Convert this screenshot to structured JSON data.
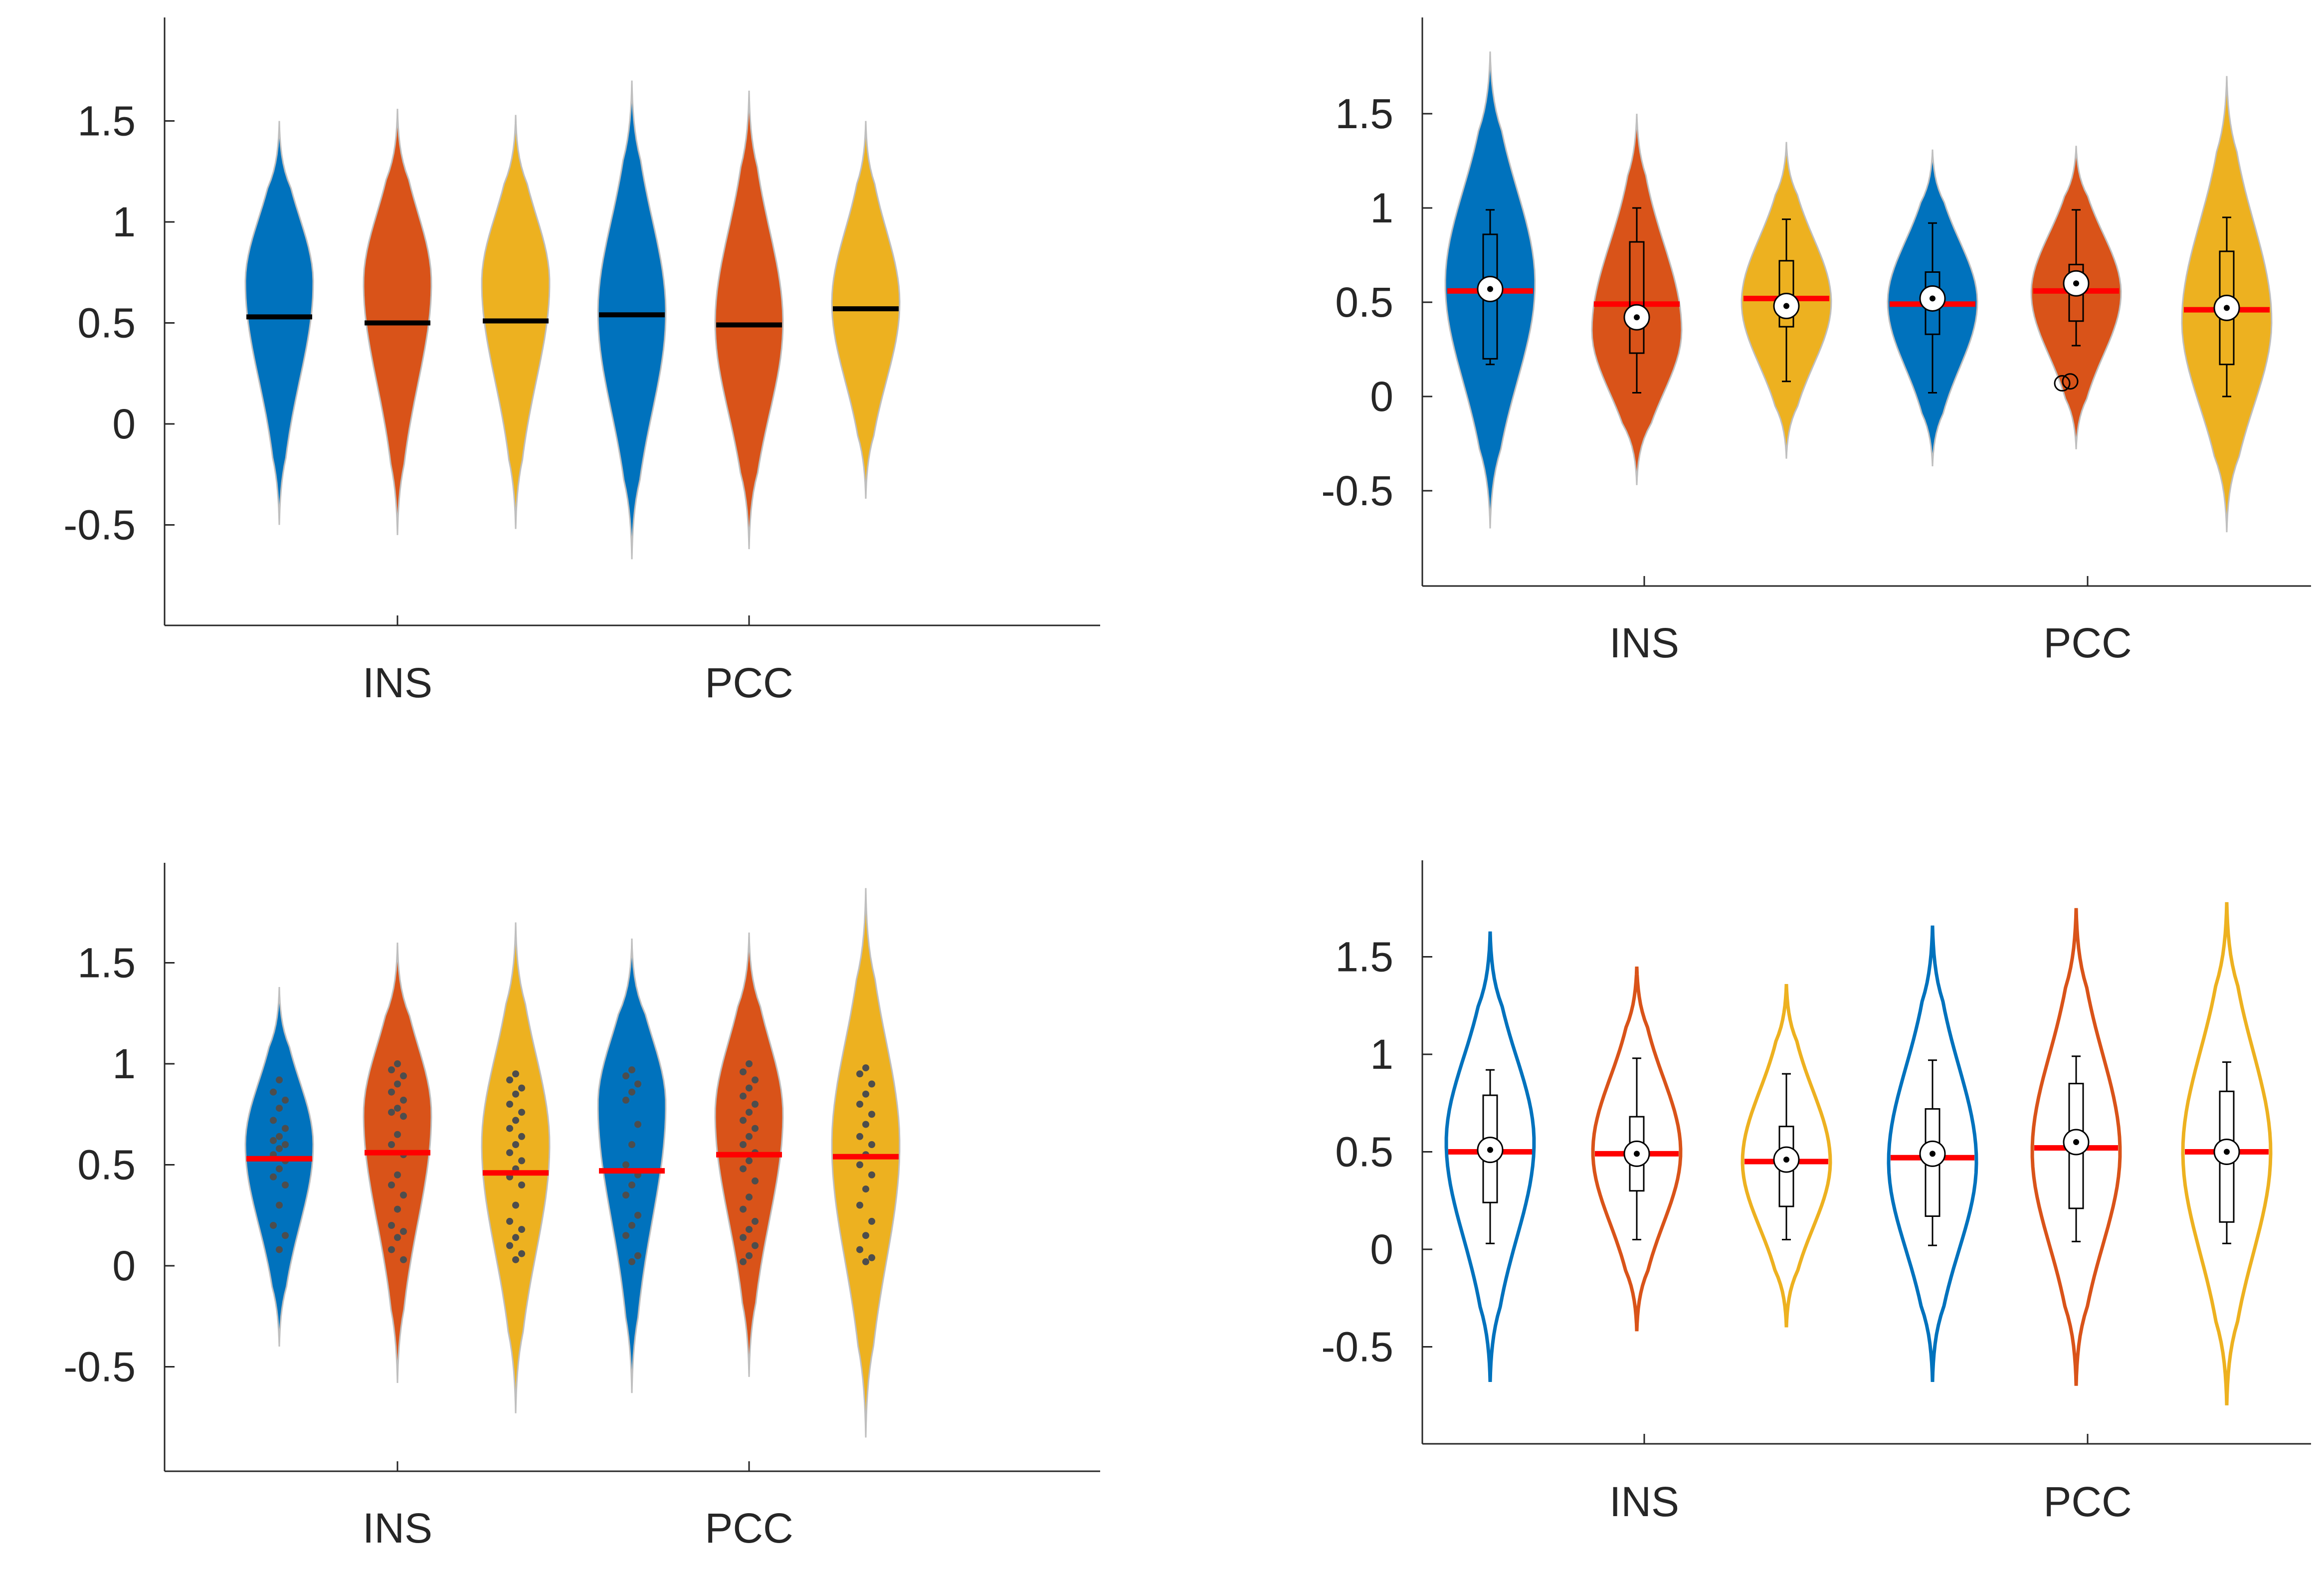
{
  "colors": {
    "blue": "#0072BD",
    "orange": "#D95319",
    "yellow": "#EDB120",
    "median_red": "#FF0000",
    "median_black": "#000000",
    "points": "#4D4D4D",
    "axis": "#262626"
  },
  "chart_data": [
    {
      "type": "violin",
      "panel": "top-left",
      "style": "filled violins, black mean line",
      "categories": [
        "INS",
        "PCC"
      ],
      "ylim": [
        -0.98,
        1.98
      ],
      "yticks": [
        -0.5,
        0,
        0.5,
        1,
        1.5
      ],
      "ytick_labels": [
        "-0.5",
        "0",
        "0.5",
        "1",
        "1.5"
      ],
      "grid": false,
      "violins": [
        {
          "color": "blue",
          "min": -0.5,
          "max": 1.5,
          "mode": 0.7,
          "center_line": 0.53
        },
        {
          "color": "orange",
          "min": -0.55,
          "max": 1.56,
          "mode": 0.7,
          "center_line": 0.5
        },
        {
          "color": "yellow",
          "min": -0.52,
          "max": 1.53,
          "mode": 0.7,
          "center_line": 0.51
        },
        {
          "color": "blue",
          "min": -0.67,
          "max": 1.7,
          "mode": 0.55,
          "center_line": 0.54
        },
        {
          "color": "orange",
          "min": -0.62,
          "max": 1.65,
          "mode": 0.5,
          "center_line": 0.49
        },
        {
          "color": "yellow",
          "min": -0.37,
          "max": 1.5,
          "mode": 0.6,
          "center_line": 0.57
        }
      ]
    },
    {
      "type": "violin",
      "panel": "top-right",
      "style": "filled violins, box plot, red mean line",
      "categories": [
        "INS",
        "PCC"
      ],
      "ylim": [
        -0.98,
        1.98
      ],
      "yticks": [
        -0.5,
        0,
        0.5,
        1,
        1.5
      ],
      "ytick_labels": [
        "-0.5",
        "0",
        "0.5",
        "1",
        "1.5"
      ],
      "grid": false,
      "violins": [
        {
          "color": "blue",
          "min": -0.7,
          "max": 1.83,
          "mode": 0.6,
          "center_line": 0.56,
          "median": 0.57,
          "q1": 0.2,
          "q3": 0.86,
          "whisker_low": 0.17,
          "whisker_high": 0.99
        },
        {
          "color": "orange",
          "min": -0.47,
          "max": 1.5,
          "mode": 0.35,
          "center_line": 0.49,
          "median": 0.42,
          "q1": 0.23,
          "q3": 0.82,
          "whisker_low": 0.02,
          "whisker_high": 1.0
        },
        {
          "color": "yellow",
          "min": -0.33,
          "max": 1.35,
          "mode": 0.5,
          "center_line": 0.52,
          "median": 0.48,
          "q1": 0.37,
          "q3": 0.72,
          "whisker_low": 0.08,
          "whisker_high": 0.94
        },
        {
          "color": "blue",
          "min": -0.37,
          "max": 1.31,
          "mode": 0.5,
          "center_line": 0.49,
          "median": 0.52,
          "q1": 0.33,
          "q3": 0.66,
          "whisker_low": 0.02,
          "whisker_high": 0.92
        },
        {
          "color": "orange",
          "min": -0.28,
          "max": 1.33,
          "mode": 0.55,
          "center_line": 0.56,
          "median": 0.6,
          "q1": 0.4,
          "q3": 0.7,
          "whisker_low": 0.27,
          "whisker_high": 0.99,
          "outliers": [
            0.07,
            0.08
          ]
        },
        {
          "color": "yellow",
          "min": -0.72,
          "max": 1.7,
          "mode": 0.4,
          "center_line": 0.46,
          "median": 0.47,
          "q1": 0.17,
          "q3": 0.77,
          "whisker_low": 0.0,
          "whisker_high": 0.95
        }
      ]
    },
    {
      "type": "violin",
      "panel": "bottom-left",
      "style": "filled violins, data points, red mean line",
      "categories": [
        "INS",
        "PCC"
      ],
      "ylim": [
        -0.98,
        1.98
      ],
      "yticks": [
        -0.5,
        0,
        0.5,
        1,
        1.5
      ],
      "ytick_labels": [
        "-0.5",
        "0",
        "0.5",
        "1",
        "1.5"
      ],
      "grid": false,
      "violins": [
        {
          "color": "blue",
          "min": -0.4,
          "max": 1.38,
          "mode": 0.6,
          "center_line": 0.53,
          "points": [
            0.92,
            0.86,
            0.82,
            0.78,
            0.72,
            0.68,
            0.64,
            0.62,
            0.6,
            0.58,
            0.55,
            0.52,
            0.48,
            0.44,
            0.4,
            0.3,
            0.2,
            0.15,
            0.08
          ]
        },
        {
          "color": "orange",
          "min": -0.58,
          "max": 1.6,
          "mode": 0.75,
          "center_line": 0.56,
          "points": [
            1.0,
            0.97,
            0.94,
            0.9,
            0.86,
            0.82,
            0.78,
            0.76,
            0.74,
            0.65,
            0.6,
            0.55,
            0.45,
            0.4,
            0.35,
            0.28,
            0.2,
            0.17,
            0.14,
            0.08,
            0.03
          ]
        },
        {
          "color": "yellow",
          "min": -0.73,
          "max": 1.7,
          "mode": 0.6,
          "center_line": 0.46,
          "points": [
            0.95,
            0.92,
            0.88,
            0.85,
            0.8,
            0.76,
            0.72,
            0.68,
            0.64,
            0.6,
            0.56,
            0.52,
            0.48,
            0.44,
            0.4,
            0.3,
            0.22,
            0.18,
            0.14,
            0.1,
            0.06,
            0.03
          ]
        },
        {
          "color": "blue",
          "min": -0.63,
          "max": 1.62,
          "mode": 0.8,
          "center_line": 0.47,
          "points": [
            0.97,
            0.94,
            0.9,
            0.86,
            0.82,
            0.7,
            0.6,
            0.5,
            0.45,
            0.4,
            0.35,
            0.25,
            0.2,
            0.15,
            0.05,
            0.02
          ]
        },
        {
          "color": "orange",
          "min": -0.55,
          "max": 1.65,
          "mode": 0.75,
          "center_line": 0.55,
          "points": [
            1.0,
            0.96,
            0.92,
            0.88,
            0.84,
            0.8,
            0.76,
            0.72,
            0.68,
            0.64,
            0.6,
            0.56,
            0.52,
            0.48,
            0.42,
            0.34,
            0.28,
            0.22,
            0.18,
            0.14,
            0.1,
            0.05,
            0.02
          ]
        },
        {
          "color": "yellow",
          "min": -0.85,
          "max": 1.87,
          "mode": 0.6,
          "center_line": 0.54,
          "points": [
            0.98,
            0.95,
            0.9,
            0.85,
            0.8,
            0.75,
            0.7,
            0.64,
            0.6,
            0.55,
            0.5,
            0.45,
            0.38,
            0.3,
            0.22,
            0.15,
            0.08,
            0.04,
            0.02
          ]
        }
      ]
    },
    {
      "type": "violin",
      "panel": "bottom-right",
      "style": "outline violins, box plot, red mean line",
      "categories": [
        "INS",
        "PCC"
      ],
      "ylim": [
        -0.98,
        1.98
      ],
      "yticks": [
        -0.5,
        0,
        0.5,
        1,
        1.5
      ],
      "ytick_labels": [
        "-0.5",
        "0",
        "0.5",
        "1",
        "1.5"
      ],
      "grid": false,
      "violins": [
        {
          "color": "blue",
          "min": -0.68,
          "max": 1.63,
          "mode": 0.55,
          "center_line": 0.5,
          "median": 0.51,
          "q1": 0.24,
          "q3": 0.79,
          "whisker_low": 0.03,
          "whisker_high": 0.92
        },
        {
          "color": "orange",
          "min": -0.42,
          "max": 1.45,
          "mode": 0.5,
          "center_line": 0.49,
          "median": 0.49,
          "q1": 0.3,
          "q3": 0.68,
          "whisker_low": 0.05,
          "whisker_high": 0.98
        },
        {
          "color": "yellow",
          "min": -0.4,
          "max": 1.36,
          "mode": 0.45,
          "center_line": 0.45,
          "median": 0.46,
          "q1": 0.22,
          "q3": 0.63,
          "whisker_low": 0.05,
          "whisker_high": 0.9
        },
        {
          "color": "blue",
          "min": -0.68,
          "max": 1.66,
          "mode": 0.45,
          "center_line": 0.47,
          "median": 0.49,
          "q1": 0.17,
          "q3": 0.72,
          "whisker_low": 0.02,
          "whisker_high": 0.97
        },
        {
          "color": "orange",
          "min": -0.7,
          "max": 1.75,
          "mode": 0.5,
          "center_line": 0.52,
          "median": 0.55,
          "q1": 0.21,
          "q3": 0.85,
          "whisker_low": 0.04,
          "whisker_high": 0.99
        },
        {
          "color": "yellow",
          "min": -0.8,
          "max": 1.78,
          "mode": 0.5,
          "center_line": 0.5,
          "median": 0.5,
          "q1": 0.14,
          "q3": 0.81,
          "whisker_low": 0.03,
          "whisker_high": 0.96
        }
      ]
    }
  ]
}
